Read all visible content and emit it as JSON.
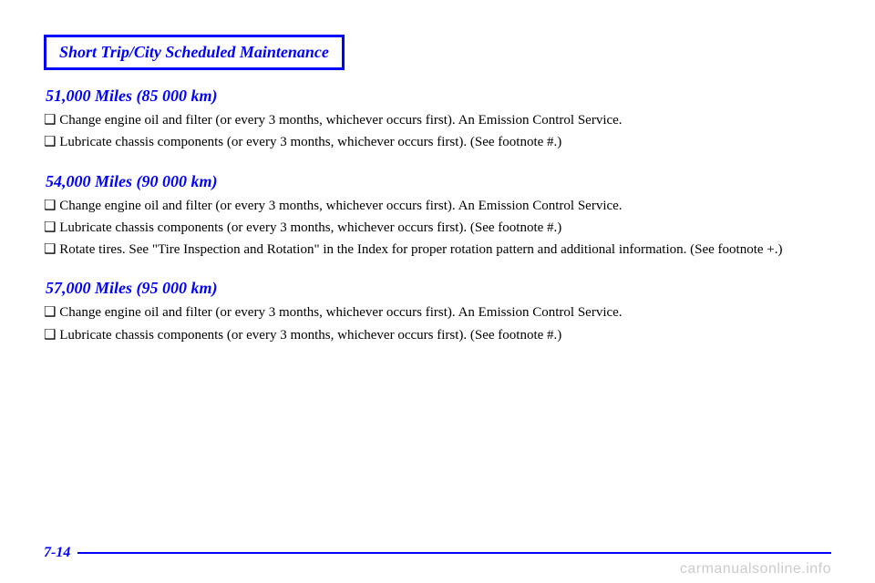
{
  "header": {
    "title": "Short Trip/City Scheduled Maintenance"
  },
  "sections": [
    {
      "milestone": "51,000 Miles (85 000 km)",
      "lines": [
        "❑ Change engine oil and filter (or every 3 months, whichever occurs first). An Emission Control Service.",
        "❑ Lubricate chassis components (or every 3 months, whichever occurs first). (See footnote #.)"
      ]
    },
    {
      "milestone": "54,000 Miles (90 000 km)",
      "lines": [
        "❑ Change engine oil and filter (or every 3 months, whichever occurs first). An Emission Control Service.",
        "❑ Lubricate chassis components (or every 3 months, whichever occurs first). (See footnote #.)",
        "❑ Rotate tires. See \"Tire Inspection and Rotation\" in the Index for proper rotation pattern and additional information. (See footnote +.)"
      ]
    },
    {
      "milestone": "57,000 Miles (95 000 km)",
      "lines": [
        "❑ Change engine oil and filter (or every 3 months, whichever occurs first). An Emission Control Service.",
        "❑ Lubricate chassis components (or every 3 months, whichever occurs first). (See footnote #.)"
      ]
    }
  ],
  "footer": {
    "page": "7-14"
  },
  "watermark": "carmanualsonline.info",
  "colors": {
    "accent": "#0000ff",
    "text": "#000000",
    "watermark": "#cccccc",
    "background": "#ffffff"
  }
}
